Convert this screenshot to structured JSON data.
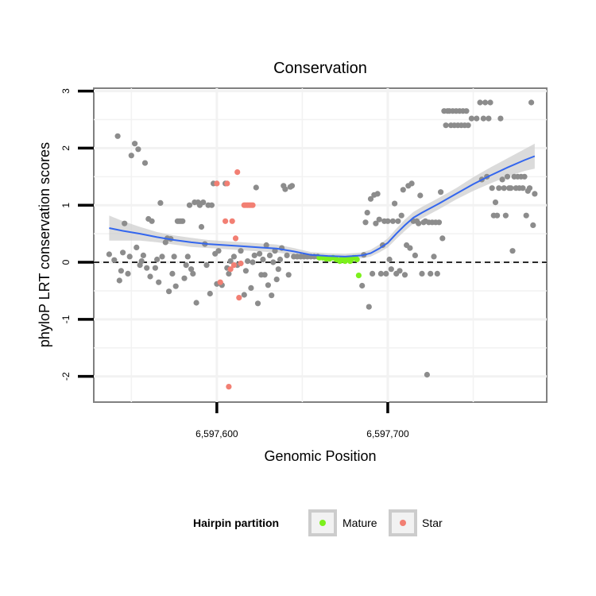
{
  "chart_data": {
    "type": "scatter",
    "title": "Conservation",
    "xlabel": "Genomic Position",
    "ylabel": "phyloP LRT conservation scores",
    "xlim": [
      6597528,
      6597793
    ],
    "ylim": [
      -2.45,
      3.05
    ],
    "x_ticks": [
      6597600,
      6597700
    ],
    "x_tick_labels": [
      "6,597,600",
      "6,597,700"
    ],
    "y_ticks": [
      -2,
      -1,
      0,
      1,
      2,
      3
    ],
    "y_tick_labels": [
      "-2",
      "-1",
      "0",
      "1",
      "2",
      "3"
    ],
    "reference_line": {
      "y": 0,
      "style": "dashed"
    },
    "legend": {
      "title": "Hairpin partition",
      "placement": "bottom",
      "entries": [
        {
          "label": "Mature",
          "color": "#7cf01c"
        },
        {
          "label": "Star",
          "color": "#f27f73"
        }
      ]
    },
    "colors": {
      "other": "#8c8c8c",
      "mature": "#7cf01c",
      "star": "#f27f73",
      "smooth": "#3366ee",
      "ribbon": "#cfcfcf"
    },
    "series": [
      {
        "name": "Other",
        "color": "#8c8c8c",
        "points": [
          [
            6597537,
            0.14
          ],
          [
            6597540,
            0.04
          ],
          [
            6597542,
            2.21
          ],
          [
            6597543,
            -0.32
          ],
          [
            6597544,
            -0.15
          ],
          [
            6597545,
            0.17
          ],
          [
            6597546,
            0.68
          ],
          [
            6597548,
            -0.2
          ],
          [
            6597549,
            0.1
          ],
          [
            6597550,
            1.87
          ],
          [
            6597552,
            2.08
          ],
          [
            6597553,
            0.26
          ],
          [
            6597554,
            1.98
          ],
          [
            6597555,
            -0.05
          ],
          [
            6597556,
            0.02
          ],
          [
            6597557,
            0.12
          ],
          [
            6597558,
            1.74
          ],
          [
            6597559,
            -0.1
          ],
          [
            6597560,
            0.76
          ],
          [
            6597561,
            -0.25
          ],
          [
            6597562,
            0.72
          ],
          [
            6597564,
            -0.1
          ],
          [
            6597565,
            0.05
          ],
          [
            6597566,
            -0.35
          ],
          [
            6597567,
            1.04
          ],
          [
            6597568,
            0.1
          ],
          [
            6597570,
            0.35
          ],
          [
            6597571,
            0.42
          ],
          [
            6597572,
            -0.51
          ],
          [
            6597573,
            0.41
          ],
          [
            6597574,
            -0.2
          ],
          [
            6597575,
            0.1
          ],
          [
            6597576,
            -0.42
          ],
          [
            6597577,
            0.72
          ],
          [
            6597578,
            0.72
          ],
          [
            6597579,
            0.72
          ],
          [
            6597580,
            0.72
          ],
          [
            6597581,
            -0.28
          ],
          [
            6597582,
            -0.05
          ],
          [
            6597583,
            0.1
          ],
          [
            6597584,
            1.0
          ],
          [
            6597585,
            -0.12
          ],
          [
            6597586,
            -0.2
          ],
          [
            6597587,
            1.05
          ],
          [
            6597588,
            -0.71
          ],
          [
            6597589,
            1.05
          ],
          [
            6597590,
            1.0
          ],
          [
            6597591,
            0.62
          ],
          [
            6597592,
            1.05
          ],
          [
            6597593,
            0.32
          ],
          [
            6597594,
            -0.05
          ],
          [
            6597595,
            1.0
          ],
          [
            6597596,
            -0.55
          ],
          [
            6597597,
            1.0
          ],
          [
            6597598,
            1.38
          ],
          [
            6597599,
            0.15
          ],
          [
            6597600,
            -0.38
          ],
          [
            6597601,
            0.2
          ],
          [
            6597603,
            -0.4
          ],
          [
            6597605,
            1.38
          ],
          [
            6597606,
            -0.1
          ],
          [
            6597607,
            -0.2
          ],
          [
            6597608,
            0.02
          ],
          [
            6597610,
            0.1
          ],
          [
            6597612,
            -0.05
          ],
          [
            6597614,
            0.2
          ],
          [
            6597616,
            -0.57
          ],
          [
            6597617,
            -0.15
          ],
          [
            6597618,
            0.02
          ],
          [
            6597620,
            -0.45
          ],
          [
            6597621,
            0.0
          ],
          [
            6597622,
            0.12
          ],
          [
            6597623,
            1.31
          ],
          [
            6597624,
            -0.72
          ],
          [
            6597625,
            0.15
          ],
          [
            6597626,
            -0.22
          ],
          [
            6597627,
            0.05
          ],
          [
            6597628,
            -0.22
          ],
          [
            6597629,
            0.3
          ],
          [
            6597630,
            -0.4
          ],
          [
            6597631,
            0.12
          ],
          [
            6597632,
            -0.58
          ],
          [
            6597633,
            0.0
          ],
          [
            6597634,
            0.2
          ],
          [
            6597635,
            -0.3
          ],
          [
            6597636,
            -0.12
          ],
          [
            6597637,
            0.05
          ],
          [
            6597638,
            0.25
          ],
          [
            6597639,
            1.34
          ],
          [
            6597640,
            1.28
          ],
          [
            6597641,
            0.12
          ],
          [
            6597642,
            -0.22
          ],
          [
            6597643,
            1.32
          ],
          [
            6597644,
            1.34
          ],
          [
            6597645,
            0.1
          ],
          [
            6597647,
            0.1
          ],
          [
            6597649,
            0.1
          ],
          [
            6597651,
            0.1
          ],
          [
            6597653,
            0.1
          ],
          [
            6597655,
            0.1
          ],
          [
            6597657,
            0.1
          ],
          [
            6597659,
            0.1
          ],
          [
            6597685,
            -0.41
          ],
          [
            6597686,
            0.13
          ],
          [
            6597687,
            0.7
          ],
          [
            6597688,
            0.87
          ],
          [
            6597689,
            -0.78
          ],
          [
            6597690,
            1.11
          ],
          [
            6597691,
            -0.2
          ],
          [
            6597692,
            1.18
          ],
          [
            6597693,
            0.68
          ],
          [
            6597694,
            1.2
          ],
          [
            6597695,
            0.75
          ],
          [
            6597696,
            -0.2
          ],
          [
            6597697,
            0.3
          ],
          [
            6597698,
            0.72
          ],
          [
            6597699,
            -0.2
          ],
          [
            6597700,
            0.72
          ],
          [
            6597701,
            0.05
          ],
          [
            6597702,
            -0.12
          ],
          [
            6597703,
            0.72
          ],
          [
            6597704,
            1.03
          ],
          [
            6597705,
            -0.2
          ],
          [
            6597706,
            0.72
          ],
          [
            6597707,
            -0.15
          ],
          [
            6597708,
            0.82
          ],
          [
            6597709,
            1.27
          ],
          [
            6597710,
            -0.22
          ],
          [
            6597711,
            0.3
          ],
          [
            6597712,
            1.34
          ],
          [
            6597713,
            0.25
          ],
          [
            6597714,
            1.38
          ],
          [
            6597715,
            0.72
          ],
          [
            6597716,
            0.12
          ],
          [
            6597717,
            0.72
          ],
          [
            6597718,
            0.68
          ],
          [
            6597719,
            1.17
          ],
          [
            6597720,
            -0.2
          ],
          [
            6597721,
            0.7
          ],
          [
            6597722,
            0.72
          ],
          [
            6597723,
            -1.97
          ],
          [
            6597724,
            0.7
          ],
          [
            6597725,
            -0.2
          ],
          [
            6597726,
            0.7
          ],
          [
            6597727,
            0.1
          ],
          [
            6597728,
            0.7
          ],
          [
            6597729,
            -0.2
          ],
          [
            6597730,
            0.7
          ],
          [
            6597731,
            1.23
          ],
          [
            6597732,
            0.42
          ],
          [
            6597733,
            2.65
          ],
          [
            6597734,
            2.4
          ],
          [
            6597735,
            2.65
          ],
          [
            6597736,
            2.65
          ],
          [
            6597737,
            2.4
          ],
          [
            6597738,
            2.65
          ],
          [
            6597739,
            2.4
          ],
          [
            6597740,
            2.65
          ],
          [
            6597741,
            2.4
          ],
          [
            6597742,
            2.65
          ],
          [
            6597743,
            2.4
          ],
          [
            6597744,
            2.65
          ],
          [
            6597745,
            2.4
          ],
          [
            6597746,
            2.65
          ],
          [
            6597747,
            2.4
          ],
          [
            6597749,
            2.52
          ],
          [
            6597752,
            2.52
          ],
          [
            6597754,
            2.8
          ],
          [
            6597755,
            1.45
          ],
          [
            6597756,
            2.52
          ],
          [
            6597757,
            2.8
          ],
          [
            6597758,
            1.5
          ],
          [
            6597759,
            2.52
          ],
          [
            6597760,
            2.8
          ],
          [
            6597761,
            1.3
          ],
          [
            6597762,
            0.82
          ],
          [
            6597763,
            1.05
          ],
          [
            6597764,
            0.82
          ],
          [
            6597765,
            1.3
          ],
          [
            6597766,
            2.52
          ],
          [
            6597767,
            1.45
          ],
          [
            6597768,
            1.3
          ],
          [
            6597769,
            0.82
          ],
          [
            6597770,
            1.5
          ],
          [
            6597771,
            1.3
          ],
          [
            6597772,
            1.3
          ],
          [
            6597773,
            0.2
          ],
          [
            6597774,
            1.5
          ],
          [
            6597775,
            1.3
          ],
          [
            6597776,
            1.5
          ],
          [
            6597777,
            1.3
          ],
          [
            6597778,
            1.5
          ],
          [
            6597779,
            1.3
          ],
          [
            6597780,
            1.5
          ],
          [
            6597781,
            0.82
          ],
          [
            6597782,
            1.25
          ],
          [
            6597783,
            1.3
          ],
          [
            6597784,
            2.8
          ],
          [
            6597785,
            0.65
          ],
          [
            6597786,
            1.2
          ]
        ]
      },
      {
        "name": "Mature",
        "color": "#7cf01c",
        "points": [
          [
            6597660,
            0.08
          ],
          [
            6597662,
            0.08
          ],
          [
            6597664,
            0.06
          ],
          [
            6597666,
            0.06
          ],
          [
            6597668,
            0.08
          ],
          [
            6597670,
            0.05
          ],
          [
            6597672,
            0.02
          ],
          [
            6597673,
            0.06
          ],
          [
            6597674,
            0.05
          ],
          [
            6597675,
            0.02
          ],
          [
            6597676,
            0.05
          ],
          [
            6597677,
            0.06
          ],
          [
            6597678,
            0.02
          ],
          [
            6597679,
            0.06
          ],
          [
            6597680,
            0.08
          ],
          [
            6597681,
            0.08
          ],
          [
            6597682,
            0.05
          ],
          [
            6597683,
            -0.23
          ]
        ]
      },
      {
        "name": "Star",
        "color": "#f27f73",
        "points": [
          [
            6597600,
            1.38
          ],
          [
            6597602,
            -0.35
          ],
          [
            6597605,
            0.72
          ],
          [
            6597606,
            1.38
          ],
          [
            6597607,
            -2.18
          ],
          [
            6597608,
            -0.12
          ],
          [
            6597609,
            0.72
          ],
          [
            6597610,
            -0.05
          ],
          [
            6597611,
            0.42
          ],
          [
            6597612,
            1.58
          ],
          [
            6597613,
            -0.62
          ],
          [
            6597614,
            -0.02
          ],
          [
            6597616,
            1.0
          ],
          [
            6597617,
            1.0
          ],
          [
            6597618,
            1.0
          ],
          [
            6597619,
            1.0
          ],
          [
            6597620,
            1.0
          ],
          [
            6597621,
            1.0
          ]
        ]
      }
    ],
    "smooth": {
      "x": [
        6597537,
        6597545,
        6597555,
        6597565,
        6597575,
        6597585,
        6597595,
        6597605,
        6597615,
        6597625,
        6597635,
        6597645,
        6597655,
        6597665,
        6597675,
        6597685,
        6597690,
        6597695,
        6597700,
        6597705,
        6597710,
        6597715,
        6597720,
        6597730,
        6597740,
        6597750,
        6597760,
        6597770,
        6597780,
        6597786
      ],
      "y": [
        0.6,
        0.55,
        0.5,
        0.44,
        0.39,
        0.35,
        0.32,
        0.3,
        0.28,
        0.26,
        0.24,
        0.19,
        0.13,
        0.11,
        0.1,
        0.12,
        0.16,
        0.24,
        0.34,
        0.5,
        0.65,
        0.78,
        0.87,
        1.03,
        1.2,
        1.37,
        1.52,
        1.66,
        1.79,
        1.86
      ],
      "se": [
        0.22,
        0.17,
        0.12,
        0.09,
        0.08,
        0.08,
        0.07,
        0.07,
        0.07,
        0.07,
        0.07,
        0.06,
        0.05,
        0.05,
        0.05,
        0.05,
        0.06,
        0.07,
        0.08,
        0.09,
        0.1,
        0.1,
        0.1,
        0.1,
        0.1,
        0.12,
        0.14,
        0.16,
        0.19,
        0.22
      ]
    }
  }
}
